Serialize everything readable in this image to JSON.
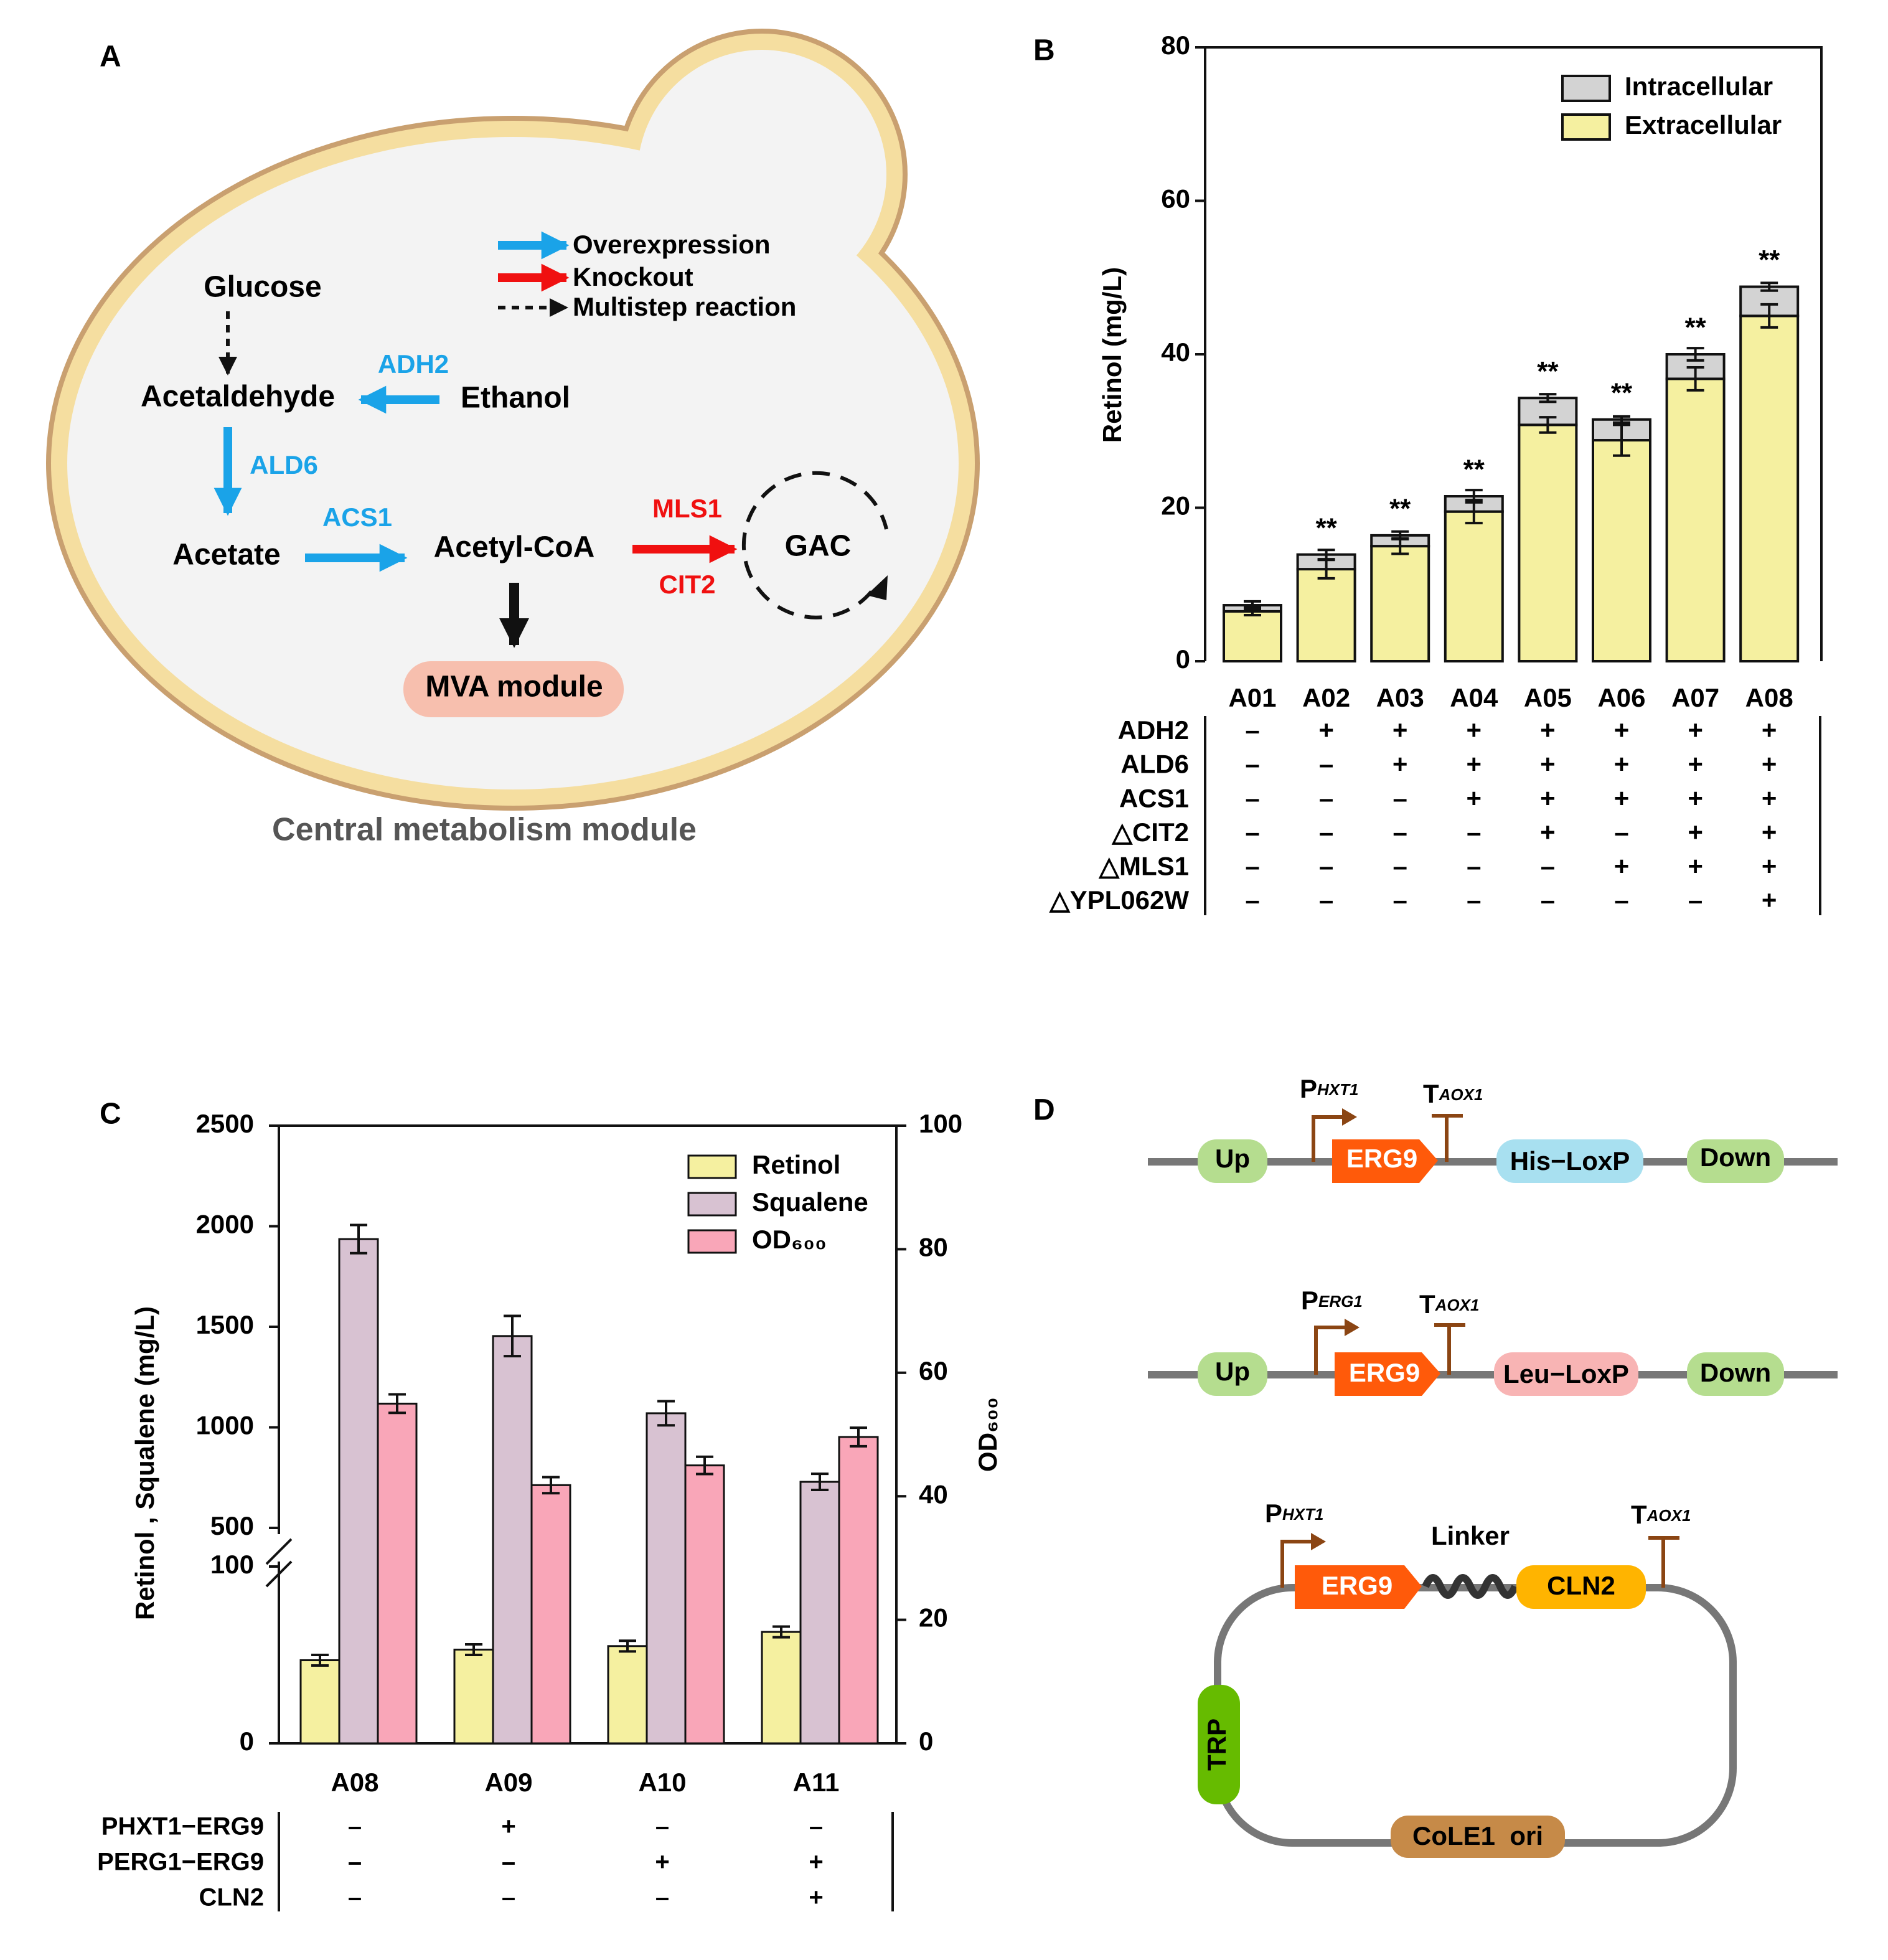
{
  "panel_labels": [
    "A",
    "B",
    "C",
    "D"
  ],
  "diagram_a": {
    "legend": [
      "Overexpression",
      "Knockout",
      "Multistep reaction"
    ],
    "nodes": {
      "glucose": "Glucose",
      "acetaldehyde": "Acetaldehyde",
      "ethanol": "Ethanol",
      "acetate": "Acetate",
      "acetyl_coa": "Acetyl-CoA",
      "gac": "GAC",
      "mva": "MVA module"
    },
    "enzymes": {
      "adh2": "ADH2",
      "ald6": "ALD6",
      "acs1": "ACS1",
      "mls1": "MLS1",
      "cit2": "CIT2"
    },
    "caption": "Central metabolism module"
  },
  "chart_data": [
    {
      "type": "stacked_bar",
      "ylabel": "Retinol (mg/L)",
      "categories": [
        "A01",
        "A02",
        "A03",
        "A04",
        "A05",
        "A06",
        "A07",
        "A08"
      ],
      "series": [
        {
          "name": "Extracellular",
          "color": "#f5f0a0",
          "values": [
            6.5,
            12.0,
            15.0,
            19.5,
            30.8,
            28.8,
            36.8,
            45.0
          ],
          "errors": [
            0.5,
            1.2,
            1.0,
            1.5,
            1.0,
            2.0,
            1.5,
            1.5
          ]
        },
        {
          "name": "Intracellular",
          "color": "#d3d3d3",
          "values": [
            0.8,
            1.9,
            1.4,
            2.0,
            3.5,
            2.7,
            3.2,
            3.8
          ],
          "errors": [
            0.5,
            0.6,
            0.5,
            0.8,
            0.5,
            0.4,
            0.8,
            0.5
          ]
        }
      ],
      "annotations": [
        null,
        "**",
        "**",
        "**",
        "**",
        "**",
        "**",
        "**"
      ],
      "ylim": [
        0,
        80
      ],
      "yticks": [
        0,
        20,
        40,
        60,
        80
      ],
      "legend": "upper right",
      "genotype": {
        "rows": [
          {
            "label": "ADH2",
            "values": [
              "–",
              "+",
              "+",
              "+",
              "+",
              "+",
              "+",
              "+"
            ]
          },
          {
            "label": "ALD6",
            "values": [
              "–",
              "–",
              "+",
              "+",
              "+",
              "+",
              "+",
              "+"
            ]
          },
          {
            "label": "ACS1",
            "values": [
              "–",
              "–",
              "–",
              "+",
              "+",
              "+",
              "+",
              "+"
            ]
          },
          {
            "label": "△CIT2",
            "values": [
              "–",
              "–",
              "–",
              "–",
              "+",
              "–",
              "+",
              "+"
            ]
          },
          {
            "label": "△MLS1",
            "values": [
              "–",
              "–",
              "–",
              "–",
              "–",
              "+",
              "+",
              "+"
            ]
          },
          {
            "label": "△YPL062W",
            "values": [
              "–",
              "–",
              "–",
              "–",
              "–",
              "–",
              "–",
              "+"
            ]
          }
        ]
      }
    },
    {
      "type": "grouped_bar",
      "ylabel": "Retinol , Squalene (mg/L)",
      "y2label": "OD₆₀₀",
      "categories": [
        "A08",
        "A09",
        "A10",
        "A11"
      ],
      "series": [
        {
          "name": "Retinol",
          "color": "#f5f0a0",
          "values": [
            47,
            53,
            55,
            63
          ],
          "errors": [
            3,
            3,
            3,
            3
          ]
        },
        {
          "name": "Squalene",
          "color": "#d8c2d2",
          "values": [
            1936,
            1454,
            1070,
            729
          ],
          "errors": [
            70,
            100,
            60,
            40
          ]
        },
        {
          "name": "OD₆₀₀",
          "color": "#f9a6b8",
          "axis": "y2",
          "values": [
            55,
            41.8,
            45,
            49.6
          ],
          "errors": [
            1.5,
            1.3,
            1.4,
            1.5
          ]
        }
      ],
      "ylim": [
        0,
        2500
      ],
      "axis_break": [
        100,
        500
      ],
      "yticks": [
        0,
        100,
        500,
        1000,
        1500,
        2000,
        2500
      ],
      "y2lim": [
        0,
        100
      ],
      "y2ticks": [
        0,
        20,
        40,
        60,
        80,
        100
      ],
      "legend": "upper right",
      "genotype": {
        "rows": [
          {
            "label": "PHXT1−ERG9",
            "values": [
              "–",
              "+",
              "–",
              "–"
            ]
          },
          {
            "label": "PERG1−ERG9",
            "values": [
              "–",
              "–",
              "+",
              "+"
            ]
          },
          {
            "label": "CLN2",
            "values": [
              "–",
              "–",
              "–",
              "+"
            ]
          }
        ]
      }
    }
  ],
  "diagram_d": {
    "construct1": {
      "up": "Up",
      "gene": "ERG9",
      "marker": "His−LoxP",
      "down": "Down",
      "promoter": {
        "main": "P",
        "sub": "HXT1"
      },
      "terminator": {
        "main": "T",
        "sub": "AOX1"
      }
    },
    "construct2": {
      "up": "Up",
      "gene": "ERG9",
      "marker": "Leu−LoxP",
      "down": "Down",
      "promoter": {
        "main": "P",
        "sub": "ERG1"
      },
      "terminator": {
        "main": "T",
        "sub": "AOX1"
      }
    },
    "plasmid": {
      "gene": "ERG9",
      "linker": "Linker",
      "fusion": "CLN2",
      "selection": "TRP",
      "origin": "CoLE1  ori",
      "promoter": {
        "main": "P",
        "sub": "HXT1"
      },
      "terminator": {
        "main": "T",
        "sub": "AOX1"
      }
    }
  }
}
